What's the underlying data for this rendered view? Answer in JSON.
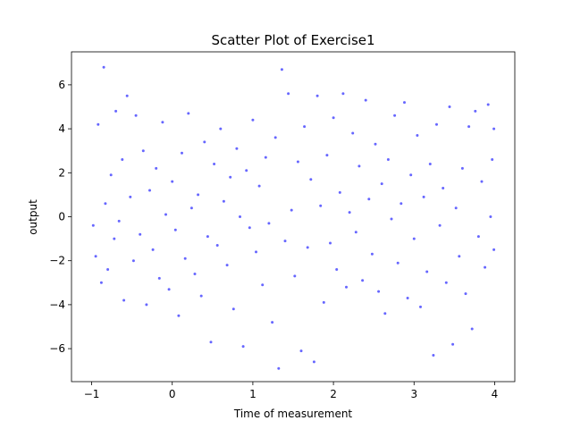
{
  "chart_data": {
    "type": "scatter",
    "title": "Scatter Plot of Exercise1",
    "xlabel": "Time of measurement",
    "ylabel": "output",
    "xlim": [
      -1.25,
      4.25
    ],
    "ylim": [
      -7.5,
      7.5
    ],
    "x_ticks": [
      -1,
      0,
      1,
      2,
      3,
      4
    ],
    "y_ticks": [
      -6,
      -4,
      -2,
      0,
      2,
      4,
      6
    ],
    "x_tick_labels": [
      "−1",
      "0",
      "1",
      "2",
      "3",
      "4"
    ],
    "y_tick_labels": [
      "−6",
      "−4",
      "−2",
      "0",
      "2",
      "4",
      "6"
    ],
    "grid": false,
    "marker_color": "#0000ff",
    "marker_opacity": 0.6,
    "series": [
      {
        "points": [
          [
            -0.98,
            -0.4
          ],
          [
            -0.95,
            -1.8
          ],
          [
            -0.92,
            4.2
          ],
          [
            -0.88,
            -3.0
          ],
          [
            -0.85,
            6.8
          ],
          [
            -0.83,
            0.6
          ],
          [
            -0.8,
            -2.4
          ],
          [
            -0.76,
            1.9
          ],
          [
            -0.72,
            -1.0
          ],
          [
            -0.7,
            4.8
          ],
          [
            -0.66,
            -0.2
          ],
          [
            -0.62,
            2.6
          ],
          [
            -0.6,
            -3.8
          ],
          [
            -0.56,
            5.5
          ],
          [
            -0.52,
            0.9
          ],
          [
            -0.48,
            -2.0
          ],
          [
            -0.45,
            4.6
          ],
          [
            -0.4,
            -0.8
          ],
          [
            -0.36,
            3.0
          ],
          [
            -0.32,
            -4.0
          ],
          [
            -0.28,
            1.2
          ],
          [
            -0.24,
            -1.5
          ],
          [
            -0.2,
            2.2
          ],
          [
            -0.16,
            -2.8
          ],
          [
            -0.12,
            4.3
          ],
          [
            -0.08,
            0.1
          ],
          [
            -0.04,
            -3.3
          ],
          [
            0.0,
            1.6
          ],
          [
            0.04,
            -0.6
          ],
          [
            0.08,
            -4.5
          ],
          [
            0.12,
            2.9
          ],
          [
            0.16,
            -1.9
          ],
          [
            0.2,
            4.7
          ],
          [
            0.24,
            0.4
          ],
          [
            0.28,
            -2.6
          ],
          [
            0.32,
            1.0
          ],
          [
            0.36,
            -3.6
          ],
          [
            0.4,
            3.4
          ],
          [
            0.44,
            -0.9
          ],
          [
            0.48,
            -5.7
          ],
          [
            0.52,
            2.4
          ],
          [
            0.56,
            -1.3
          ],
          [
            0.6,
            4.0
          ],
          [
            0.64,
            0.7
          ],
          [
            0.68,
            -2.2
          ],
          [
            0.72,
            1.8
          ],
          [
            0.76,
            -4.2
          ],
          [
            0.8,
            3.1
          ],
          [
            0.84,
            0.0
          ],
          [
            0.88,
            -5.9
          ],
          [
            0.92,
            2.1
          ],
          [
            0.96,
            -0.5
          ],
          [
            1.0,
            4.4
          ],
          [
            1.04,
            -1.6
          ],
          [
            1.08,
            1.4
          ],
          [
            1.12,
            -3.1
          ],
          [
            1.16,
            2.7
          ],
          [
            1.2,
            -0.3
          ],
          [
            1.24,
            -4.8
          ],
          [
            1.28,
            3.6
          ],
          [
            1.32,
            -6.9
          ],
          [
            1.36,
            6.7
          ],
          [
            1.4,
            -1.1
          ],
          [
            1.44,
            5.6
          ],
          [
            1.48,
            0.3
          ],
          [
            1.52,
            -2.7
          ],
          [
            1.56,
            2.5
          ],
          [
            1.6,
            -6.1
          ],
          [
            1.64,
            4.1
          ],
          [
            1.68,
            -1.4
          ],
          [
            1.72,
            1.7
          ],
          [
            1.76,
            -6.6
          ],
          [
            1.8,
            5.5
          ],
          [
            1.84,
            0.5
          ],
          [
            1.88,
            -3.9
          ],
          [
            1.92,
            2.8
          ],
          [
            1.96,
            -1.2
          ],
          [
            2.0,
            4.5
          ],
          [
            2.04,
            -2.4
          ],
          [
            2.08,
            1.1
          ],
          [
            2.12,
            5.6
          ],
          [
            2.16,
            -3.2
          ],
          [
            2.2,
            0.2
          ],
          [
            2.24,
            3.8
          ],
          [
            2.28,
            -0.7
          ],
          [
            2.32,
            2.3
          ],
          [
            2.36,
            -2.9
          ],
          [
            2.4,
            5.3
          ],
          [
            2.44,
            0.8
          ],
          [
            2.48,
            -1.7
          ],
          [
            2.52,
            3.3
          ],
          [
            2.56,
            -3.4
          ],
          [
            2.6,
            1.5
          ],
          [
            2.64,
            -4.4
          ],
          [
            2.68,
            2.6
          ],
          [
            2.72,
            -0.1
          ],
          [
            2.76,
            4.6
          ],
          [
            2.8,
            -2.1
          ],
          [
            2.84,
            0.6
          ],
          [
            2.88,
            5.2
          ],
          [
            2.92,
            -3.7
          ],
          [
            2.96,
            1.9
          ],
          [
            3.0,
            -1.0
          ],
          [
            3.04,
            3.7
          ],
          [
            3.08,
            -4.1
          ],
          [
            3.12,
            0.9
          ],
          [
            3.16,
            -2.5
          ],
          [
            3.2,
            2.4
          ],
          [
            3.24,
            -6.3
          ],
          [
            3.28,
            4.2
          ],
          [
            3.32,
            -0.4
          ],
          [
            3.36,
            1.3
          ],
          [
            3.4,
            -3.0
          ],
          [
            3.44,
            5.0
          ],
          [
            3.48,
            -5.8
          ],
          [
            3.52,
            0.4
          ],
          [
            3.56,
            -1.8
          ],
          [
            3.6,
            2.2
          ],
          [
            3.64,
            -3.5
          ],
          [
            3.68,
            4.1
          ],
          [
            3.72,
            -5.1
          ],
          [
            3.76,
            4.8
          ],
          [
            3.8,
            -0.9
          ],
          [
            3.84,
            1.6
          ],
          [
            3.88,
            -2.3
          ],
          [
            3.92,
            5.1
          ],
          [
            3.95,
            0.0
          ],
          [
            3.97,
            2.6
          ],
          [
            3.99,
            -1.5
          ],
          [
            3.99,
            4.0
          ]
        ]
      }
    ]
  }
}
